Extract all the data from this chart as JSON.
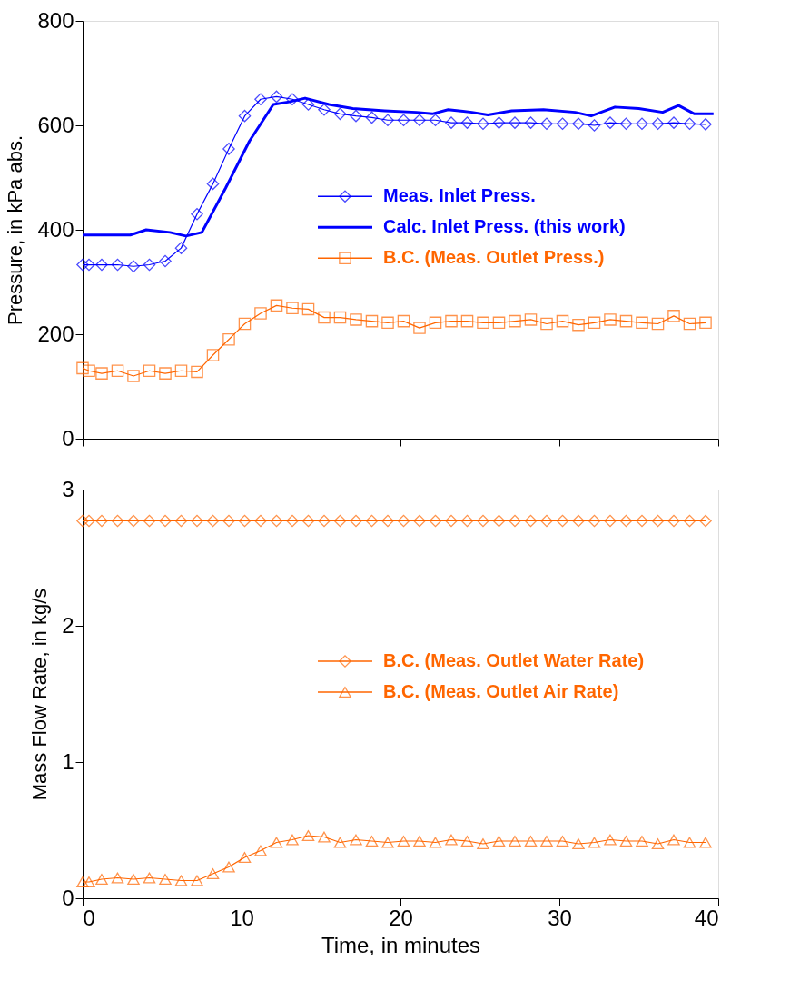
{
  "chart_data": [
    {
      "type": "line",
      "ylabel": "Pressure, in kPa abs.",
      "xlim": [
        0,
        40
      ],
      "xticks": [
        0,
        10,
        20,
        30,
        40
      ],
      "ylim": [
        0,
        800
      ],
      "yticks": [
        0,
        200,
        400,
        600,
        800
      ],
      "tick_labels": "y",
      "grid": false,
      "legend": "right",
      "series": [
        {
          "name": "Meas. Inlet Press.",
          "color": "#0000ff",
          "marker": "diamond",
          "x": [
            0,
            0.4,
            1.2,
            2.2,
            3.2,
            4.2,
            5.2,
            6.2,
            7.2,
            8.2,
            9.2,
            10.2,
            11.2,
            12.2,
            13.2,
            14.2,
            15.2,
            16.2,
            17.2,
            18.2,
            19.2,
            20.2,
            21.2,
            22.2,
            23.2,
            24.2,
            25.2,
            26.2,
            27.2,
            28.2,
            29.2,
            30.2,
            31.2,
            32.2,
            33.2,
            34.2,
            35.2,
            36.2,
            37.2,
            38.2,
            39.2
          ],
          "values": [
            333,
            333,
            333,
            333,
            330,
            333,
            340,
            365,
            430,
            488,
            555,
            618,
            650,
            655,
            650,
            640,
            630,
            622,
            618,
            615,
            610,
            610,
            610,
            610,
            605,
            605,
            603,
            605,
            605,
            605,
            603,
            603,
            603,
            600,
            605,
            603,
            603,
            603,
            605,
            603,
            602
          ]
        },
        {
          "name": "Calc. Inlet Press. (this work)",
          "color": "#0000ff",
          "marker": "none",
          "x": [
            0,
            3,
            4,
            5.5,
            6.5,
            7.5,
            9,
            10.5,
            12,
            13,
            14,
            15.5,
            17,
            19,
            21,
            22,
            23,
            24.5,
            25.5,
            27,
            29,
            31,
            32,
            33.5,
            35,
            36.5,
            37.5,
            38.5,
            39.7
          ],
          "values": [
            390,
            390,
            400,
            395,
            388,
            395,
            480,
            570,
            640,
            645,
            652,
            640,
            632,
            628,
            625,
            622,
            630,
            625,
            620,
            628,
            630,
            625,
            618,
            635,
            632,
            625,
            638,
            622,
            622
          ]
        },
        {
          "name": "B.C. (Meas. Outlet Press.)",
          "color": "#ff6600",
          "marker": "square",
          "x": [
            0,
            0.4,
            1.2,
            2.2,
            3.2,
            4.2,
            5.2,
            6.2,
            7.2,
            8.2,
            9.2,
            10.2,
            11.2,
            12.2,
            13.2,
            14.2,
            15.2,
            16.2,
            17.2,
            18.2,
            19.2,
            20.2,
            21.2,
            22.2,
            23.2,
            24.2,
            25.2,
            26.2,
            27.2,
            28.2,
            29.2,
            30.2,
            31.2,
            32.2,
            33.2,
            34.2,
            35.2,
            36.2,
            37.2,
            38.2,
            39.2
          ],
          "values": [
            135,
            130,
            125,
            130,
            120,
            130,
            125,
            130,
            128,
            160,
            190,
            220,
            240,
            255,
            250,
            248,
            232,
            232,
            228,
            225,
            222,
            225,
            212,
            222,
            225,
            225,
            222,
            222,
            225,
            228,
            220,
            225,
            218,
            222,
            228,
            225,
            222,
            220,
            235,
            220,
            222
          ]
        }
      ]
    },
    {
      "type": "line",
      "ylabel": "Mass Flow Rate, in kg/s",
      "xlabel": "Time, in minutes",
      "xlim": [
        0,
        40
      ],
      "xticks": [
        0,
        10,
        20,
        30,
        40
      ],
      "ylim": [
        0,
        3
      ],
      "yticks": [
        0,
        1,
        2,
        3
      ],
      "grid": false,
      "legend": "right",
      "series": [
        {
          "name": "B.C. (Meas. Outlet Water Rate)",
          "color": "#ff6600",
          "marker": "diamond",
          "x": [
            0,
            0.4,
            1.2,
            2.2,
            3.2,
            4.2,
            5.2,
            6.2,
            7.2,
            8.2,
            9.2,
            10.2,
            11.2,
            12.2,
            13.2,
            14.2,
            15.2,
            16.2,
            17.2,
            18.2,
            19.2,
            20.2,
            21.2,
            22.2,
            23.2,
            24.2,
            25.2,
            26.2,
            27.2,
            28.2,
            29.2,
            30.2,
            31.2,
            32.2,
            33.2,
            34.2,
            35.2,
            36.2,
            37.2,
            38.2,
            39.2
          ],
          "values": [
            2.77,
            2.77,
            2.77,
            2.77,
            2.77,
            2.77,
            2.77,
            2.77,
            2.77,
            2.77,
            2.77,
            2.77,
            2.77,
            2.77,
            2.77,
            2.77,
            2.77,
            2.77,
            2.77,
            2.77,
            2.77,
            2.77,
            2.77,
            2.77,
            2.77,
            2.77,
            2.77,
            2.77,
            2.77,
            2.77,
            2.77,
            2.77,
            2.77,
            2.77,
            2.77,
            2.77,
            2.77,
            2.77,
            2.77,
            2.77,
            2.77
          ]
        },
        {
          "name": "B.C. (Meas. Outlet Air Rate)",
          "color": "#ff6600",
          "marker": "triangle",
          "x": [
            0,
            0.4,
            1.2,
            2.2,
            3.2,
            4.2,
            5.2,
            6.2,
            7.2,
            8.2,
            9.2,
            10.2,
            11.2,
            12.2,
            13.2,
            14.2,
            15.2,
            16.2,
            17.2,
            18.2,
            19.2,
            20.2,
            21.2,
            22.2,
            23.2,
            24.2,
            25.2,
            26.2,
            27.2,
            28.2,
            29.2,
            30.2,
            31.2,
            32.2,
            33.2,
            34.2,
            35.2,
            36.2,
            37.2,
            38.2,
            39.2
          ],
          "values": [
            0.12,
            0.12,
            0.14,
            0.15,
            0.14,
            0.15,
            0.14,
            0.13,
            0.13,
            0.18,
            0.23,
            0.3,
            0.35,
            0.41,
            0.43,
            0.46,
            0.45,
            0.41,
            0.43,
            0.42,
            0.41,
            0.42,
            0.42,
            0.41,
            0.43,
            0.42,
            0.4,
            0.42,
            0.42,
            0.42,
            0.42,
            0.42,
            0.4,
            0.41,
            0.43,
            0.42,
            0.42,
            0.4,
            0.43,
            0.41,
            0.41
          ]
        }
      ]
    }
  ]
}
